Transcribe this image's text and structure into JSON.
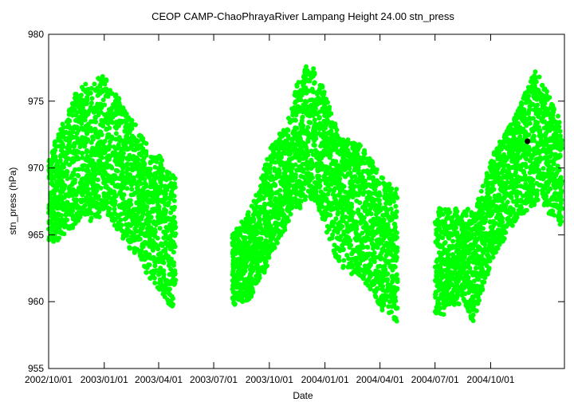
{
  "chart_data": {
    "type": "scatter",
    "title": "CEOP CAMP-ChaoPhrayaRiver Lampang Height 24.00 stn_press",
    "xlabel": "Date",
    "ylabel": "stn_press (hPa)",
    "xlim": [
      "2002-10-01",
      "2005-01-31"
    ],
    "ylim": [
      955,
      980
    ],
    "x_ticks": [
      "2002/10/01",
      "2003/01/01",
      "2003/04/01",
      "2003/07/01",
      "2003/10/01",
      "2004/01/01",
      "2004/04/01",
      "2004/07/01",
      "2004/10/01"
    ],
    "y_ticks": [
      955,
      960,
      965,
      970,
      975,
      980
    ],
    "grid": false,
    "legend": "none",
    "series": [
      {
        "color": "#00ff00",
        "marker": "circle",
        "segments": [
          {
            "x": [
              "2002-10-01",
              "2002-10-08",
              "2002-10-15",
              "2002-10-22",
              "2002-10-29",
              "2002-11-05",
              "2002-11-12",
              "2002-11-19",
              "2002-11-26",
              "2002-12-03",
              "2002-12-10",
              "2002-12-17",
              "2002-12-24",
              "2002-12-31",
              "2003-01-07",
              "2003-01-14",
              "2003-01-21",
              "2003-01-28",
              "2003-02-04",
              "2003-02-11",
              "2003-02-18",
              "2003-02-25",
              "2003-03-04",
              "2003-03-11",
              "2003-03-18",
              "2003-03-25",
              "2003-04-01",
              "2003-04-08",
              "2003-04-15",
              "2003-04-22",
              "2003-04-29"
            ],
            "center": [
              967.5,
              968.0,
              968.5,
              969.0,
              969.5,
              970.0,
              970.5,
              971.0,
              971.5,
              971.5,
              971.0,
              971.5,
              971.5,
              972.0,
              971.5,
              971.0,
              970.5,
              970.0,
              969.5,
              969.0,
              968.5,
              968.0,
              967.5,
              967.0,
              966.5,
              966.0,
              966.0,
              965.5,
              965.0,
              964.5,
              964.5
            ],
            "amp": [
              3.0,
              3.5,
              4.0,
              4.0,
              4.5,
              4.5,
              5.0,
              5.0,
              5.0,
              5.0,
              5.0,
              5.0,
              5.5,
              5.0,
              5.0,
              5.0,
              5.0,
              5.0,
              5.0,
              5.0,
              5.0,
              5.0,
              5.0,
              5.0,
              5.0,
              5.0,
              5.0,
              5.0,
              5.0,
              5.0,
              5.0
            ]
          },
          {
            "x": [
              "2003-08-01",
              "2003-08-08",
              "2003-08-15",
              "2003-08-22",
              "2003-08-29",
              "2003-09-05",
              "2003-09-12",
              "2003-09-19",
              "2003-09-26",
              "2003-10-03",
              "2003-10-10",
              "2003-10-17",
              "2003-10-24",
              "2003-10-31",
              "2003-11-07",
              "2003-11-14",
              "2003-11-21",
              "2003-11-28",
              "2003-12-05",
              "2003-12-12",
              "2003-12-19",
              "2003-12-26",
              "2004-01-02",
              "2004-01-09",
              "2004-01-16",
              "2004-01-23",
              "2004-01-30",
              "2004-02-06",
              "2004-02-13",
              "2004-02-20",
              "2004-02-27",
              "2004-03-05",
              "2004-03-12",
              "2004-03-19",
              "2004-03-26",
              "2004-04-02",
              "2004-04-09",
              "2004-04-16",
              "2004-04-23",
              "2004-04-30"
            ],
            "center": [
              962.5,
              962.5,
              963.0,
              963.0,
              963.5,
              964.0,
              965.0,
              965.5,
              966.5,
              967.5,
              968.0,
              968.5,
              969.0,
              969.5,
              970.5,
              971.5,
              972.0,
              972.5,
              973.0,
              972.5,
              972.0,
              971.5,
              970.5,
              969.5,
              968.5,
              968.0,
              967.5,
              967.5,
              967.0,
              967.0,
              967.0,
              966.5,
              966.0,
              965.5,
              965.0,
              964.5,
              964.0,
              964.0,
              963.5,
              963.5
            ],
            "amp": [
              2.5,
              3.0,
              3.0,
              3.0,
              3.5,
              3.5,
              3.5,
              4.0,
              4.0,
              4.0,
              4.0,
              4.0,
              4.0,
              4.0,
              4.0,
              4.5,
              5.0,
              5.0,
              5.0,
              5.0,
              5.0,
              5.0,
              5.0,
              5.0,
              5.0,
              5.0,
              5.0,
              5.0,
              5.0,
              5.0,
              5.0,
              5.0,
              5.0,
              5.0,
              5.0,
              5.0,
              5.0,
              5.0,
              5.0,
              5.0
            ]
          },
          {
            "x": [
              "2004-07-01",
              "2004-07-08",
              "2004-07-15",
              "2004-07-22",
              "2004-07-29",
              "2004-08-05",
              "2004-08-12",
              "2004-08-19",
              "2004-08-26",
              "2004-09-02",
              "2004-09-09",
              "2004-09-16",
              "2004-09-23",
              "2004-09-30",
              "2004-10-07",
              "2004-10-14",
              "2004-10-21",
              "2004-10-28",
              "2004-11-04",
              "2004-11-11",
              "2004-11-18",
              "2004-11-25",
              "2004-12-02",
              "2004-12-09",
              "2004-12-16",
              "2004-12-23",
              "2004-12-30",
              "2005-01-06",
              "2005-01-13",
              "2005-01-20",
              "2005-01-27"
            ],
            "center": [
              962.5,
              963.0,
              963.0,
              963.5,
              963.0,
              963.5,
              963.0,
              963.5,
              963.0,
              962.5,
              963.5,
              964.5,
              965.5,
              966.5,
              967.5,
              968.0,
              968.5,
              969.0,
              969.5,
              970.0,
              970.5,
              971.0,
              971.5,
              972.0,
              972.5,
              972.0,
              971.5,
              971.0,
              970.5,
              970.0,
              969.5
            ],
            "amp": [
              3.5,
              4.0,
              4.0,
              3.5,
              3.5,
              3.5,
              3.5,
              3.5,
              4.0,
              4.0,
              4.0,
              4.0,
              4.0,
              4.0,
              4.0,
              4.0,
              4.0,
              4.0,
              4.0,
              4.0,
              4.0,
              4.5,
              4.5,
              5.0,
              5.0,
              4.5,
              4.5,
              4.5,
              4.0,
              4.0,
              4.0
            ]
          }
        ]
      },
      {
        "color": "#000000",
        "marker": "circle",
        "x": [
          "2004-12-01"
        ],
        "y": [
          972.0
        ]
      }
    ]
  }
}
